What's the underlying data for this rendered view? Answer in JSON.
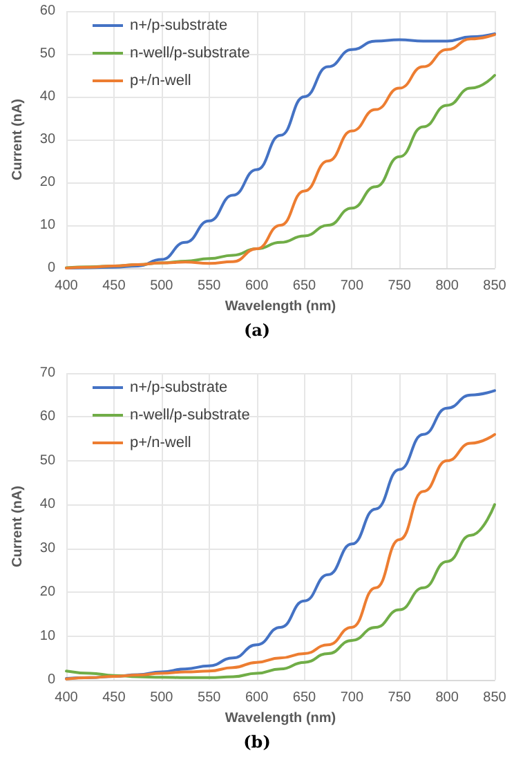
{
  "chart_data": [
    {
      "type": "line",
      "title": "(a)",
      "xlabel": "Wavelength (nm)",
      "ylabel": "Current (nA)",
      "x": [
        400,
        425,
        450,
        475,
        500,
        525,
        550,
        575,
        600,
        625,
        650,
        675,
        700,
        725,
        750,
        775,
        800,
        825,
        850
      ],
      "series": [
        {
          "name": "n+/p-substrate",
          "color": "#4472c4",
          "values": [
            0,
            0.1,
            0.2,
            0.5,
            2,
            6,
            11,
            17,
            23,
            31,
            40,
            47,
            51,
            53,
            53.3,
            53,
            53,
            54,
            54.7
          ]
        },
        {
          "name": "n-well/p-substrate",
          "color": "#70ad47",
          "values": [
            0.1,
            0.3,
            0.5,
            0.8,
            1.2,
            1.6,
            2.2,
            3,
            4.5,
            6,
            7.5,
            10,
            14,
            19,
            26,
            33,
            38,
            42,
            45
          ]
        },
        {
          "name": "p+/n-well",
          "color": "#ed7d31",
          "values": [
            0,
            0.2,
            0.5,
            0.8,
            1.2,
            1.4,
            1.1,
            1.5,
            4.5,
            10,
            18,
            25,
            32,
            37,
            42,
            47,
            51,
            53.5,
            54.5
          ]
        }
      ],
      "xlim": [
        400,
        850
      ],
      "xticks": [
        400,
        450,
        500,
        550,
        600,
        650,
        700,
        750,
        800,
        850
      ],
      "ylim": [
        0,
        60
      ],
      "yticks": [
        0,
        10,
        20,
        30,
        40,
        50,
        60
      ],
      "grid": true,
      "legend": "top left",
      "marker": "none",
      "line_style": "solid"
    },
    {
      "type": "line",
      "title": "(b)",
      "xlabel": "Wavelength (nm)",
      "ylabel": "Current (nA)",
      "x": [
        400,
        425,
        450,
        475,
        500,
        525,
        550,
        575,
        600,
        625,
        650,
        675,
        700,
        725,
        750,
        775,
        800,
        825,
        850
      ],
      "series": [
        {
          "name": "n+/p-substrate",
          "color": "#4472c4",
          "values": [
            0.3,
            0.5,
            0.8,
            1.2,
            1.8,
            2.5,
            3.2,
            5,
            8,
            12,
            18,
            24,
            31,
            39,
            48,
            56,
            62,
            65,
            66
          ]
        },
        {
          "name": "n-well/p-substrate",
          "color": "#70ad47",
          "values": [
            2,
            1.5,
            1,
            0.7,
            0.6,
            0.5,
            0.5,
            0.7,
            1.5,
            2.5,
            4,
            6,
            9,
            12,
            16,
            21,
            27,
            33,
            40
          ]
        },
        {
          "name": "p+/n-well",
          "color": "#ed7d31",
          "values": [
            0.2,
            0.5,
            0.8,
            1.1,
            1.5,
            1.8,
            2,
            2.8,
            4,
            5,
            6,
            8,
            12,
            21,
            32,
            43,
            50,
            54,
            56
          ]
        }
      ],
      "xlim": [
        400,
        850
      ],
      "xticks": [
        400,
        450,
        500,
        550,
        600,
        650,
        700,
        750,
        800,
        850
      ],
      "ylim": [
        0,
        70
      ],
      "yticks": [
        0,
        10,
        20,
        30,
        40,
        50,
        60,
        70
      ],
      "grid": true,
      "legend": "top left",
      "marker": "none",
      "line_style": "solid"
    }
  ]
}
